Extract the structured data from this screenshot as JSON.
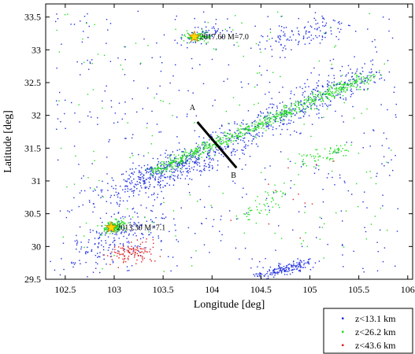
{
  "chart_data": {
    "type": "scatter",
    "title": "",
    "xlabel": "Longitude [deg]",
    "ylabel": "Latitude [deg]",
    "xlim": [
      102.3,
      106.05
    ],
    "ylim": [
      29.5,
      33.7
    ],
    "xticks": [
      102.5,
      103,
      103.5,
      104,
      104.5,
      105,
      105.5,
      106
    ],
    "xtick_labels": [
      "102.5",
      "103",
      "103.5",
      "104",
      "104.5",
      "105",
      "105.5",
      "106"
    ],
    "yticks": [
      29.5,
      30,
      30.5,
      31,
      31.5,
      32,
      32.5,
      33,
      33.5
    ],
    "ytick_labels": [
      "29.5",
      "30",
      "30.5",
      "31",
      "31.5",
      "32",
      "32.5",
      "33",
      "33.5"
    ],
    "grid": false,
    "legend_position": "below-right",
    "series": [
      {
        "name": "z<13.1 km",
        "color": "#1f2fe0",
        "clusters": [
          {
            "x": [
              103.0,
              105.6
            ],
            "y": [
              30.75,
              32.65
            ],
            "sd": 0.13,
            "n": 650
          },
          {
            "x": [
              103.2,
              104.0
            ],
            "y": [
              31.0,
              31.35
            ],
            "sd": 0.12,
            "n": 200
          },
          {
            "x": [
              102.65,
              103.4
            ],
            "y": [
              29.75,
              30.5
            ],
            "sd": 0.18,
            "n": 200
          },
          {
            "x": [
              104.5,
              104.95
            ],
            "y": [
              29.55,
              29.75
            ],
            "sd": 0.05,
            "n": 160
          },
          {
            "x": [
              103.7,
              104.1
            ],
            "y": [
              33.15,
              33.3
            ],
            "sd": 0.07,
            "n": 70
          },
          {
            "x": [
              104.5,
              105.4
            ],
            "y": [
              33.05,
              33.4
            ],
            "sd": 0.1,
            "n": 110
          },
          {
            "x": [
              102.4,
              105.9
            ],
            "y": [
              29.6,
              33.6
            ],
            "sd": 0,
            "n": 450
          }
        ]
      },
      {
        "name": "z<26.2 km",
        "color": "#22dd22",
        "clusters": [
          {
            "x": [
              103.4,
              105.6
            ],
            "y": [
              31.15,
              32.6
            ],
            "sd": 0.05,
            "n": 750
          },
          {
            "x": [
              102.95,
              103.05
            ],
            "y": [
              30.25,
              30.35
            ],
            "sd": 0.05,
            "n": 160
          },
          {
            "x": [
              103.75,
              103.95
            ],
            "y": [
              33.2,
              33.2
            ],
            "sd": 0.05,
            "n": 100
          },
          {
            "x": [
              104.9,
              105.4
            ],
            "y": [
              31.3,
              31.5
            ],
            "sd": 0.06,
            "n": 70
          },
          {
            "x": [
              104.3,
              104.7
            ],
            "y": [
              30.4,
              30.9
            ],
            "sd": 0.07,
            "n": 50
          },
          {
            "x": [
              102.4,
              105.9
            ],
            "y": [
              29.6,
              33.6
            ],
            "sd": 0,
            "n": 160
          }
        ]
      },
      {
        "name": "z<43.6 km",
        "color": "#e02020",
        "clusters": [
          {
            "x": [
              103.05,
              103.3
            ],
            "y": [
              29.85,
              29.95
            ],
            "sd": 0.09,
            "n": 110
          },
          {
            "x": [
              104.6,
              105.3
            ],
            "y": [
              30.1,
              31.6
            ],
            "sd": 0.2,
            "n": 12
          }
        ]
      }
    ],
    "profile_line": {
      "from": [
        103.85,
        31.9
      ],
      "to": [
        104.25,
        31.2
      ],
      "label_start": "A",
      "label_end": "B"
    },
    "profile_label_pos": {
      "A": [
        103.8,
        32.08
      ],
      "B": [
        104.22,
        31.05
      ]
    },
    "events": [
      {
        "label": "2017.60 M=7.0",
        "lon": 103.82,
        "lat": 33.2
      },
      {
        "label": "2013.30 M=7.1",
        "lon": 102.97,
        "lat": 30.29
      }
    ]
  }
}
